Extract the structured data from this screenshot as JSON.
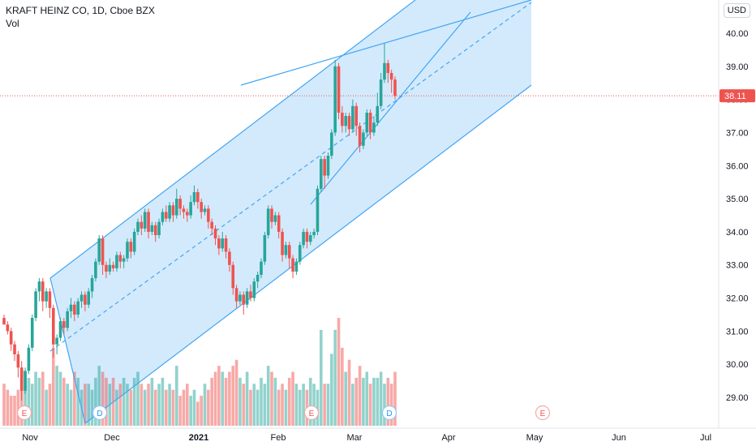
{
  "header": {
    "title": "KRAFT HEINZ CO, 1D, Cboe BZX",
    "sub": "Vol",
    "currency": "USD"
  },
  "last_price_label": "38.11",
  "colors": {
    "up": "#26a69a",
    "down": "#ef5350",
    "channel_line": "#42a5f5",
    "channel_fill": "#bbdefb",
    "price_line": "#ef5350"
  },
  "chart_data": {
    "type": "candlestick",
    "title": "KRAFT HEINZ CO, 1D, Cboe BZX",
    "ylim": [
      28.3,
      40.6
    ],
    "y_ticks": [
      "40.00",
      "39.00",
      "38.00",
      "37.00",
      "36.00",
      "35.00",
      "34.00",
      "33.00",
      "32.00",
      "31.00",
      "30.00",
      "29.00"
    ],
    "x_ticks": [
      "Nov",
      "Dec",
      "2021",
      "Feb",
      "Mar",
      "Apr",
      "May",
      "Jun",
      "Jul"
    ],
    "last_price": 38.11,
    "candles": [
      [
        31.4,
        31.2,
        31.2,
        31.5
      ],
      [
        31.2,
        31.0,
        30.9,
        31.3
      ],
      [
        31.0,
        30.6,
        30.4,
        31.1
      ],
      [
        30.6,
        30.3,
        30.1,
        30.7
      ],
      [
        30.3,
        29.9,
        29.6,
        30.4
      ],
      [
        29.9,
        29.2,
        28.9,
        30.1
      ],
      [
        29.2,
        29.8,
        29.1,
        29.9
      ],
      [
        29.8,
        30.5,
        29.7,
        30.6
      ],
      [
        30.5,
        31.4,
        30.4,
        31.5
      ],
      [
        31.4,
        32.2,
        31.3,
        32.3
      ],
      [
        32.2,
        32.5,
        31.9,
        32.6
      ],
      [
        32.5,
        31.9,
        31.6,
        32.6
      ],
      [
        31.9,
        32.2,
        31.7,
        32.3
      ],
      [
        32.2,
        31.7,
        31.4,
        32.3
      ],
      [
        31.7,
        30.6,
        30.2,
        31.8
      ],
      [
        30.6,
        30.8,
        30.3,
        30.9
      ],
      [
        30.8,
        31.3,
        30.7,
        31.4
      ],
      [
        31.3,
        31.1,
        30.9,
        31.4
      ],
      [
        31.1,
        31.6,
        31.0,
        31.7
      ],
      [
        31.6,
        31.8,
        31.4,
        32.0
      ],
      [
        31.8,
        31.5,
        31.3,
        31.9
      ],
      [
        31.5,
        31.9,
        31.4,
        32.0
      ],
      [
        31.9,
        32.1,
        31.7,
        32.2
      ],
      [
        32.1,
        31.8,
        31.6,
        32.2
      ],
      [
        31.8,
        32.2,
        31.7,
        32.3
      ],
      [
        32.2,
        32.6,
        32.0,
        32.7
      ],
      [
        32.6,
        33.1,
        32.5,
        33.2
      ],
      [
        33.1,
        33.8,
        33.0,
        33.9
      ],
      [
        33.8,
        33.0,
        32.7,
        33.9
      ],
      [
        33.0,
        32.8,
        32.6,
        33.1
      ],
      [
        32.8,
        33.0,
        32.7,
        33.2
      ],
      [
        33.0,
        32.9,
        32.8,
        33.1
      ],
      [
        32.9,
        33.3,
        32.8,
        33.4
      ],
      [
        33.3,
        33.1,
        32.9,
        33.4
      ],
      [
        33.1,
        33.2,
        32.9,
        33.3
      ],
      [
        33.2,
        33.7,
        33.1,
        33.8
      ],
      [
        33.7,
        33.4,
        33.2,
        33.8
      ],
      [
        33.4,
        34.0,
        33.3,
        34.1
      ],
      [
        34.0,
        34.3,
        33.9,
        34.4
      ],
      [
        34.3,
        34.1,
        33.9,
        34.5
      ],
      [
        34.1,
        34.6,
        34.0,
        34.7
      ],
      [
        34.6,
        34.0,
        33.8,
        34.7
      ],
      [
        34.0,
        34.2,
        33.9,
        34.3
      ],
      [
        34.2,
        33.9,
        33.7,
        34.3
      ],
      [
        33.9,
        34.3,
        33.8,
        34.4
      ],
      [
        34.3,
        34.6,
        34.2,
        34.7
      ],
      [
        34.6,
        34.4,
        34.3,
        34.8
      ],
      [
        34.4,
        34.8,
        34.3,
        34.9
      ],
      [
        34.8,
        34.5,
        34.3,
        34.9
      ],
      [
        34.5,
        35.0,
        34.4,
        35.3
      ],
      [
        35.0,
        34.7,
        34.5,
        35.1
      ],
      [
        34.7,
        34.6,
        34.4,
        34.8
      ],
      [
        34.6,
        34.5,
        34.3,
        34.7
      ],
      [
        34.5,
        34.9,
        34.4,
        35.1
      ],
      [
        34.9,
        35.2,
        34.8,
        35.4
      ],
      [
        35.2,
        34.9,
        34.7,
        35.3
      ],
      [
        34.9,
        34.6,
        34.4,
        35.0
      ],
      [
        34.6,
        34.7,
        34.5,
        34.8
      ],
      [
        34.7,
        34.3,
        34.1,
        34.8
      ],
      [
        34.3,
        34.1,
        33.9,
        34.4
      ],
      [
        34.1,
        33.8,
        33.6,
        34.2
      ],
      [
        33.8,
        33.5,
        33.3,
        33.9
      ],
      [
        33.5,
        33.8,
        33.4,
        34.0
      ],
      [
        33.8,
        33.4,
        33.2,
        33.9
      ],
      [
        33.4,
        33.0,
        32.8,
        33.5
      ],
      [
        33.0,
        32.3,
        32.1,
        33.1
      ],
      [
        32.3,
        31.9,
        31.7,
        32.4
      ],
      [
        31.9,
        32.1,
        31.8,
        32.2
      ],
      [
        32.1,
        31.8,
        31.5,
        32.2
      ],
      [
        31.8,
        32.2,
        31.7,
        32.3
      ],
      [
        32.2,
        32.0,
        31.9,
        32.4
      ],
      [
        32.0,
        32.5,
        31.9,
        32.6
      ],
      [
        32.5,
        32.7,
        32.3,
        32.8
      ],
      [
        32.7,
        33.1,
        32.6,
        33.2
      ],
      [
        33.1,
        33.9,
        33.0,
        34.0
      ],
      [
        33.9,
        34.7,
        33.8,
        34.8
      ],
      [
        34.7,
        34.3,
        34.1,
        34.8
      ],
      [
        34.3,
        34.5,
        34.2,
        34.6
      ],
      [
        34.5,
        34.0,
        33.8,
        34.6
      ],
      [
        34.0,
        33.3,
        33.1,
        34.1
      ],
      [
        33.3,
        33.6,
        33.2,
        33.7
      ],
      [
        33.6,
        33.2,
        32.9,
        33.7
      ],
      [
        33.2,
        32.8,
        32.6,
        33.3
      ],
      [
        32.8,
        33.1,
        32.7,
        33.2
      ],
      [
        33.1,
        33.6,
        33.0,
        33.7
      ],
      [
        33.6,
        34.0,
        33.5,
        34.1
      ],
      [
        34.0,
        33.7,
        33.5,
        34.1
      ],
      [
        33.7,
        33.9,
        33.6,
        34.0
      ],
      [
        33.9,
        34.0,
        33.8,
        34.1
      ],
      [
        34.0,
        35.3,
        33.9,
        35.4
      ],
      [
        35.3,
        36.2,
        35.2,
        36.3
      ],
      [
        36.2,
        35.7,
        35.3,
        36.3
      ],
      [
        35.7,
        36.3,
        35.6,
        36.4
      ],
      [
        36.3,
        37.0,
        36.2,
        37.1
      ],
      [
        37.0,
        39.0,
        36.9,
        39.2
      ],
      [
        39.0,
        37.6,
        37.4,
        39.1
      ],
      [
        37.6,
        37.2,
        37.0,
        37.8
      ],
      [
        37.2,
        37.5,
        37.0,
        37.6
      ],
      [
        37.5,
        37.1,
        36.9,
        37.6
      ],
      [
        37.1,
        37.8,
        37.0,
        38.0
      ],
      [
        37.8,
        37.2,
        36.9,
        37.9
      ],
      [
        37.2,
        36.6,
        36.4,
        37.3
      ],
      [
        36.6,
        37.0,
        36.5,
        37.1
      ],
      [
        37.0,
        37.6,
        36.9,
        37.7
      ],
      [
        37.6,
        37.0,
        36.8,
        37.7
      ],
      [
        37.0,
        37.3,
        36.9,
        37.5
      ],
      [
        37.3,
        37.8,
        37.2,
        38.2
      ],
      [
        37.8,
        38.6,
        37.7,
        38.8
      ],
      [
        38.6,
        39.1,
        38.5,
        39.7
      ],
      [
        39.1,
        38.8,
        38.5,
        39.2
      ],
      [
        38.8,
        38.6,
        38.2,
        38.9
      ],
      [
        38.6,
        38.11,
        38.0,
        38.7
      ]
    ],
    "volume": [
      7,
      6,
      5,
      5,
      6,
      8,
      9,
      8,
      7,
      9,
      8,
      9,
      6,
      7,
      13,
      10,
      9,
      8,
      7,
      6,
      9,
      8,
      6,
      7,
      7,
      6,
      8,
      10,
      9,
      8,
      7,
      8,
      6,
      7,
      8,
      7,
      6,
      8,
      9,
      7,
      6,
      7,
      8,
      6,
      7,
      8,
      6,
      7,
      6,
      10,
      5,
      6,
      7,
      5,
      6,
      4,
      5,
      7,
      6,
      8,
      9,
      10,
      9,
      8,
      9,
      10,
      11,
      8,
      7,
      9,
      6,
      7,
      6,
      8,
      7,
      10,
      9,
      8,
      6,
      7,
      6,
      8,
      9,
      7,
      6,
      7,
      6,
      8,
      7,
      6,
      16,
      7,
      7,
      12,
      16,
      18,
      13,
      9,
      11,
      7,
      8,
      10,
      8,
      9,
      7,
      8,
      8,
      9,
      7,
      8,
      7,
      9
    ]
  },
  "drawings": {
    "channel_upper": [
      [
        62,
        343
      ],
      [
        512,
        0
      ]
    ],
    "channel_lower": [
      [
        105,
        522
      ],
      [
        655,
        105
      ]
    ],
    "channel_mid": [
      [
        62,
        433
      ],
      [
        655,
        3
      ]
    ],
    "wedge_upper": [
      [
        297,
        105
      ],
      [
        655,
        0
      ]
    ],
    "wedge_lower": [
      [
        383,
        252
      ],
      [
        580,
        15
      ]
    ],
    "projection": [
      [
        512,
        0
      ],
      [
        655,
        0
      ],
      [
        655,
        105
      ]
    ]
  },
  "events": [
    {
      "label": "E",
      "x": 30
    },
    {
      "label": "D",
      "x": 123
    },
    {
      "label": "E",
      "x": 384
    },
    {
      "label": "D",
      "x": 480
    },
    {
      "label": "E",
      "x": 669
    }
  ]
}
